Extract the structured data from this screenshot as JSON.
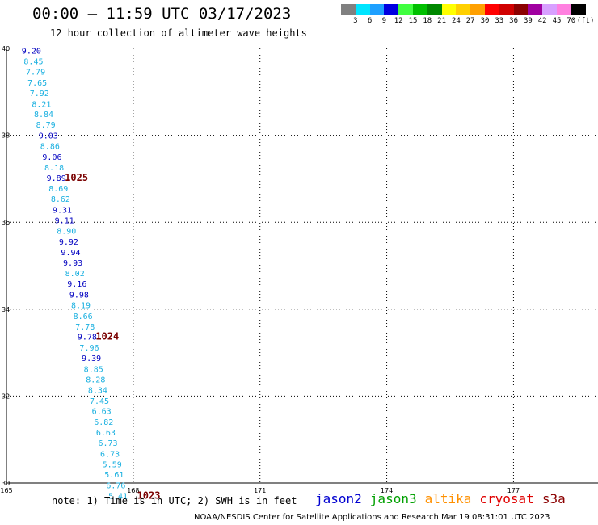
{
  "header": {
    "title": "00:00 – 11:59 UTC 03/17/2023",
    "subtitle": "12 hour collection of altimeter wave heights"
  },
  "colorbar": {
    "colors": [
      "#808080",
      "#00e5ff",
      "#1ea0ff",
      "#0000e0",
      "#40ff40",
      "#00c000",
      "#008800",
      "#ffff00",
      "#ffd000",
      "#ffa000",
      "#ff0000",
      "#d00000",
      "#8b0000",
      "#a000a0",
      "#d8a0ff",
      "#ff80e0",
      "#000000"
    ],
    "labels": [
      "3",
      "6",
      "9",
      "12",
      "15",
      "18",
      "21",
      "24",
      "27",
      "30",
      "33",
      "36",
      "39",
      "42",
      "45",
      "70",
      "(ft)"
    ]
  },
  "chart_data": {
    "type": "scatter",
    "xlim": [
      165,
      179
    ],
    "ylim": [
      30,
      40
    ],
    "x_ticks": [
      "165",
      "168",
      "171",
      "174",
      "177"
    ],
    "y_ticks": [
      "40",
      "38",
      "36",
      "34",
      "32",
      "30"
    ],
    "grid": true,
    "series_colors": {
      "cyan": "#1ab0e0",
      "blue": "#0000c0"
    },
    "points": [
      {
        "lon": 165.59,
        "lat": 39.95,
        "label": "9.20",
        "color": "blue"
      },
      {
        "lon": 165.64,
        "lat": 39.71,
        "label": "8.45",
        "color": "cyan"
      },
      {
        "lon": 165.69,
        "lat": 39.47,
        "label": "7.79",
        "color": "cyan"
      },
      {
        "lon": 165.73,
        "lat": 39.22,
        "label": "7.65",
        "color": "cyan"
      },
      {
        "lon": 165.78,
        "lat": 38.98,
        "label": "7.92",
        "color": "cyan"
      },
      {
        "lon": 165.83,
        "lat": 38.73,
        "label": "8.21",
        "color": "cyan"
      },
      {
        "lon": 165.88,
        "lat": 38.49,
        "label": "8.84",
        "color": "cyan"
      },
      {
        "lon": 165.93,
        "lat": 38.25,
        "label": "8.79",
        "color": "cyan"
      },
      {
        "lon": 165.99,
        "lat": 38.0,
        "label": "9.03",
        "color": "blue"
      },
      {
        "lon": 166.03,
        "lat": 37.76,
        "label": "8.86",
        "color": "cyan"
      },
      {
        "lon": 166.08,
        "lat": 37.51,
        "label": "9.06",
        "color": "blue"
      },
      {
        "lon": 166.13,
        "lat": 37.27,
        "label": "8.18",
        "color": "cyan"
      },
      {
        "lon": 166.18,
        "lat": 37.03,
        "label": "9.89",
        "color": "blue"
      },
      {
        "lon": 166.23,
        "lat": 36.78,
        "label": "8.69",
        "color": "cyan"
      },
      {
        "lon": 166.28,
        "lat": 36.54,
        "label": "8.62",
        "color": "cyan"
      },
      {
        "lon": 166.32,
        "lat": 36.29,
        "label": "9.31",
        "color": "blue"
      },
      {
        "lon": 166.37,
        "lat": 36.05,
        "label": "9.11",
        "color": "blue"
      },
      {
        "lon": 166.42,
        "lat": 35.81,
        "label": "8.90",
        "color": "cyan"
      },
      {
        "lon": 166.47,
        "lat": 35.56,
        "label": "9.92",
        "color": "blue"
      },
      {
        "lon": 166.52,
        "lat": 35.32,
        "label": "9.94",
        "color": "blue"
      },
      {
        "lon": 166.57,
        "lat": 35.07,
        "label": "9.93",
        "color": "blue"
      },
      {
        "lon": 166.62,
        "lat": 34.83,
        "label": "8.02",
        "color": "cyan"
      },
      {
        "lon": 166.67,
        "lat": 34.59,
        "label": "9.16",
        "color": "blue"
      },
      {
        "lon": 166.72,
        "lat": 34.34,
        "label": "9.98",
        "color": "blue"
      },
      {
        "lon": 166.76,
        "lat": 34.1,
        "label": "8.19",
        "color": "cyan"
      },
      {
        "lon": 166.81,
        "lat": 33.85,
        "label": "8.66",
        "color": "cyan"
      },
      {
        "lon": 166.86,
        "lat": 33.61,
        "label": "7.78",
        "color": "cyan"
      },
      {
        "lon": 166.91,
        "lat": 33.37,
        "label": "9.78",
        "color": "blue"
      },
      {
        "lon": 166.96,
        "lat": 33.12,
        "label": "7.96",
        "color": "cyan"
      },
      {
        "lon": 167.01,
        "lat": 32.88,
        "label": "9.39",
        "color": "blue"
      },
      {
        "lon": 167.06,
        "lat": 32.63,
        "label": "8.85",
        "color": "cyan"
      },
      {
        "lon": 167.11,
        "lat": 32.39,
        "label": "8.28",
        "color": "cyan"
      },
      {
        "lon": 167.16,
        "lat": 32.15,
        "label": "8.34",
        "color": "cyan"
      },
      {
        "lon": 167.2,
        "lat": 31.9,
        "label": "7.45",
        "color": "cyan"
      },
      {
        "lon": 167.25,
        "lat": 31.66,
        "label": "6.63",
        "color": "cyan"
      },
      {
        "lon": 167.3,
        "lat": 31.41,
        "label": "6.82",
        "color": "cyan"
      },
      {
        "lon": 167.35,
        "lat": 31.17,
        "label": "6.63",
        "color": "cyan"
      },
      {
        "lon": 167.4,
        "lat": 30.93,
        "label": "6.73",
        "color": "cyan"
      },
      {
        "lon": 167.45,
        "lat": 30.68,
        "label": "6.73",
        "color": "cyan"
      },
      {
        "lon": 167.5,
        "lat": 30.44,
        "label": "5.59",
        "color": "cyan"
      },
      {
        "lon": 167.55,
        "lat": 30.2,
        "label": "5.61",
        "color": "cyan"
      },
      {
        "lon": 167.59,
        "lat": 29.95,
        "label": "6.76",
        "color": "cyan"
      },
      {
        "lon": 167.64,
        "lat": 29.71,
        "label": "5.41",
        "color": "cyan"
      }
    ],
    "pressure_labels": [
      {
        "lon": 166.38,
        "lat": 37.03,
        "label": "1025"
      },
      {
        "lon": 167.11,
        "lat": 33.37,
        "label": "1024"
      },
      {
        "lon": 168.09,
        "lat": 29.71,
        "label": "1023"
      }
    ]
  },
  "footer": {
    "note": "note: 1) Time is in UTC; 2) SWH is in feet",
    "credit": "NOAA/NESDIS Center for Satellite Applications and Research    Mar 19 08:31:01 UTC 2023"
  },
  "legend": {
    "items": [
      {
        "label": "jason2",
        "color": "#0000d0"
      },
      {
        "label": "jason3",
        "color": "#00a000"
      },
      {
        "label": "altika",
        "color": "#ff9000"
      },
      {
        "label": "cryosat",
        "color": "#e00000"
      },
      {
        "label": "s3a",
        "color": "#8b0000"
      }
    ]
  }
}
